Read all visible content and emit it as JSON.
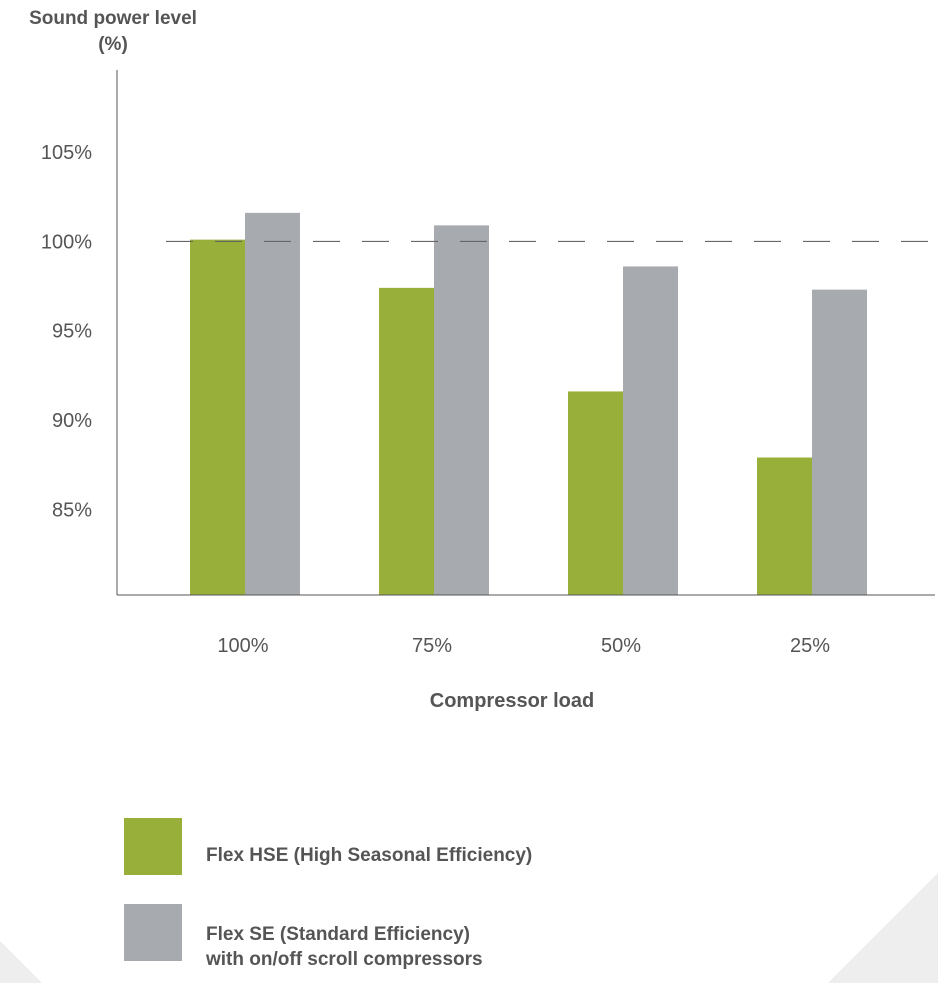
{
  "chart_data": {
    "type": "bar",
    "ylabel_lines": [
      "Sound power level",
      "(%)"
    ],
    "xlabel": "Compressor load",
    "categories": [
      "100%",
      "75%",
      "50%",
      "25%"
    ],
    "series": [
      {
        "name": "Flex HSE (High Seasonal Efficiency)",
        "color": "#98b03a",
        "values": [
          100.1,
          97.4,
          91.6,
          87.9
        ]
      },
      {
        "name": "Flex SE (Standard Efficiency) with on/off scroll compressors",
        "color": "#a7aaaf",
        "values": [
          101.6,
          100.9,
          98.6,
          97.3
        ]
      }
    ],
    "y_ticks": [
      {
        "value": 85,
        "label": "85%"
      },
      {
        "value": 90,
        "label": "90%"
      },
      {
        "value": 95,
        "label": "95%"
      },
      {
        "value": 100,
        "label": "100%"
      },
      {
        "value": 105,
        "label": "105%"
      }
    ],
    "ylim": [
      80.2,
      109.6
    ],
    "reference_line": 100,
    "legend_position": "bottom",
    "grid": false
  },
  "legend": {
    "items": [
      {
        "lines": [
          "Flex HSE (High Seasonal Efficiency)"
        ],
        "color": "#98b03a"
      },
      {
        "lines": [
          "Flex SE (Standard Efficiency)",
          "with on/off scroll compressors"
        ],
        "color": "#a7aaaf"
      }
    ]
  }
}
